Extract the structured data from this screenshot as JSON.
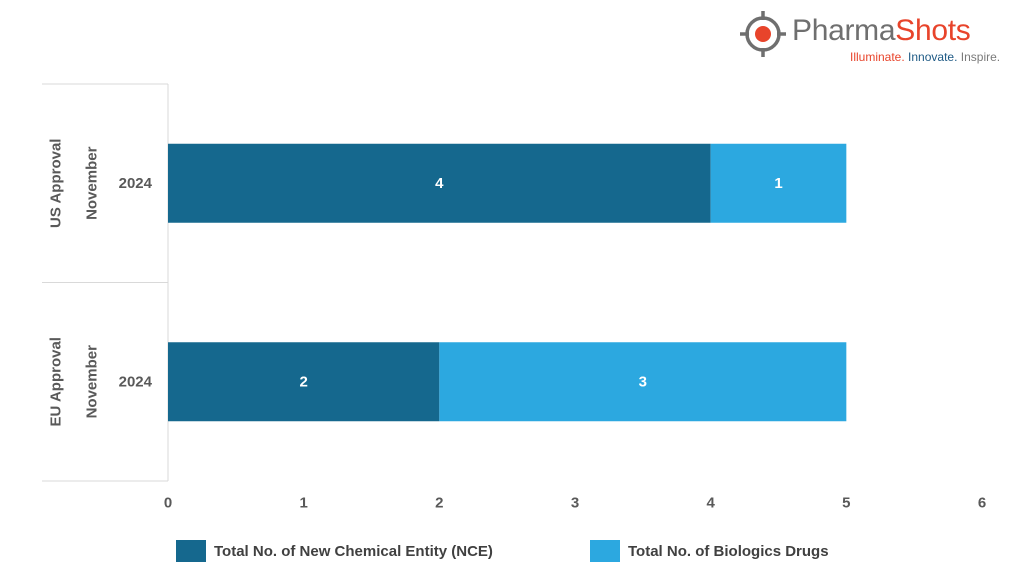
{
  "brand": {
    "name_part1": "Pharma",
    "name_part2": "Shots",
    "tagline_1": "Illuminate.",
    "tagline_2": "Innovate.",
    "tagline_3": "Inspire.",
    "icon": "crosshair-logo-icon"
  },
  "colors": {
    "nce": "#15688e",
    "biologics": "#2ca8e0",
    "brand_grey": "#6f6f6f",
    "brand_red": "#e8442b"
  },
  "chart_data": {
    "type": "bar",
    "orientation": "horizontal",
    "stacked": true,
    "groups": [
      {
        "label": "US Approval",
        "sublabel": "November",
        "category": "2024"
      },
      {
        "label": "EU Approval",
        "sublabel": "November",
        "category": "2024"
      }
    ],
    "series": [
      {
        "name": "Total No. of New Chemical Entity (NCE)",
        "values": [
          4,
          2
        ]
      },
      {
        "name": "Total No. of Biologics Drugs",
        "values": [
          1,
          3
        ]
      }
    ],
    "xlim": [
      0,
      6
    ],
    "xticks": [
      "0",
      "1",
      "2",
      "3",
      "4",
      "5",
      "6"
    ],
    "data_labels": true,
    "grid": false,
    "legend_position": "bottom"
  }
}
